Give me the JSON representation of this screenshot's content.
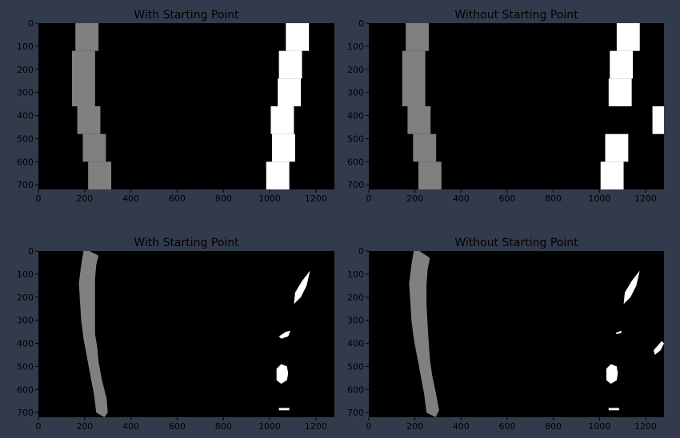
{
  "figure": {
    "background": "#323b4b",
    "panel_background": "#000000",
    "text_color": "#000000",
    "left_lane_color": "#808080",
    "right_lane_color": "#ffffff"
  },
  "chart_data": [
    {
      "type": "heatmap",
      "title": "With Starting Point",
      "xlim": [
        0,
        1280
      ],
      "ylim": [
        720,
        0
      ],
      "xticks": [
        0,
        200,
        400,
        600,
        800,
        1000,
        1200
      ],
      "yticks": [
        0,
        100,
        200,
        300,
        400,
        500,
        600,
        700
      ],
      "windows": [
        {
          "lane": "left",
          "rects": [
            [
              160,
              0,
              260,
              120
            ],
            [
              145,
              120,
              245,
              360
            ],
            [
              168,
              360,
              268,
              480
            ],
            [
              192,
              480,
              292,
              600
            ],
            [
              215,
              600,
              315,
              720
            ]
          ]
        },
        {
          "lane": "right",
          "rects": [
            [
              1070,
              0,
              1170,
              120
            ],
            [
              1040,
              120,
              1140,
              240
            ],
            [
              1035,
              240,
              1135,
              360
            ],
            [
              1005,
              360,
              1105,
              480
            ],
            [
              1010,
              480,
              1110,
              600
            ],
            [
              985,
              600,
              1085,
              720
            ]
          ]
        }
      ]
    },
    {
      "type": "heatmap",
      "title": "Without Starting Point",
      "xlim": [
        0,
        1280
      ],
      "ylim": [
        720,
        0
      ],
      "xticks": [
        0,
        200,
        400,
        600,
        800,
        1000,
        1200
      ],
      "yticks": [
        0,
        100,
        200,
        300,
        400,
        500,
        600,
        700
      ],
      "windows": [
        {
          "lane": "left",
          "rects": [
            [
              160,
              0,
              260,
              120
            ],
            [
              145,
              120,
              245,
              360
            ],
            [
              168,
              360,
              268,
              480
            ],
            [
              192,
              480,
              292,
              600
            ],
            [
              215,
              600,
              315,
              720
            ]
          ]
        },
        {
          "lane": "right",
          "rects": [
            [
              1075,
              0,
              1175,
              120
            ],
            [
              1045,
              120,
              1145,
              240
            ],
            [
              1040,
              240,
              1140,
              360
            ],
            [
              1230,
              360,
              1280,
              480
            ],
            [
              1025,
              480,
              1125,
              600
            ],
            [
              1005,
              600,
              1105,
              720
            ]
          ]
        }
      ]
    },
    {
      "type": "heatmap",
      "title": "With Starting Point",
      "xlim": [
        0,
        1280
      ],
      "ylim": [
        720,
        0
      ],
      "xticks": [
        0,
        200,
        400,
        600,
        800,
        1000,
        1200
      ],
      "yticks": [
        0,
        100,
        200,
        300,
        400,
        500,
        600,
        700
      ],
      "blobs": [
        {
          "lane": "left",
          "points": [
            [
              195,
              0
            ],
            [
              220,
              0
            ],
            [
              260,
              20
            ],
            [
              250,
              60
            ],
            [
              245,
              120
            ],
            [
              245,
              200
            ],
            [
              245,
              300
            ],
            [
              245,
              360
            ],
            [
              255,
              420
            ],
            [
              260,
              480
            ],
            [
              275,
              560
            ],
            [
              295,
              640
            ],
            [
              300,
              700
            ],
            [
              285,
              720
            ],
            [
              250,
              700
            ],
            [
              240,
              620
            ],
            [
              225,
              540
            ],
            [
              210,
              460
            ],
            [
              195,
              380
            ],
            [
              185,
              300
            ],
            [
              180,
              220
            ],
            [
              175,
              140
            ],
            [
              185,
              60
            ]
          ]
        },
        {
          "lane": "right",
          "points": [
            [
              1110,
              180
            ],
            [
              1140,
              130
            ],
            [
              1175,
              85
            ],
            [
              1160,
              150
            ],
            [
              1135,
              200
            ],
            [
              1105,
              230
            ]
          ]
        },
        {
          "lane": "right",
          "points": [
            [
              1040,
              370
            ],
            [
              1070,
              350
            ],
            [
              1090,
              345
            ],
            [
              1080,
              370
            ],
            [
              1050,
              380
            ]
          ]
        },
        {
          "lane": "right",
          "points": [
            [
              1030,
              510
            ],
            [
              1050,
              490
            ],
            [
              1075,
              500
            ],
            [
              1080,
              530
            ],
            [
              1075,
              560
            ],
            [
              1050,
              575
            ],
            [
              1030,
              560
            ]
          ]
        },
        {
          "lane": "right",
          "points": [
            [
              1040,
              680
            ],
            [
              1085,
              680
            ],
            [
              1085,
              690
            ],
            [
              1040,
              690
            ]
          ]
        }
      ]
    },
    {
      "type": "heatmap",
      "title": "Without Starting Point",
      "xlim": [
        0,
        1280
      ],
      "ylim": [
        720,
        0
      ],
      "xticks": [
        0,
        200,
        400,
        600,
        800,
        1000,
        1200
      ],
      "yticks": [
        0,
        100,
        200,
        300,
        400,
        500,
        600,
        700
      ],
      "blobs": [
        {
          "lane": "left",
          "points": [
            [
              195,
              0
            ],
            [
              220,
              0
            ],
            [
              265,
              30
            ],
            [
              255,
              80
            ],
            [
              250,
              150
            ],
            [
              250,
              230
            ],
            [
              255,
              320
            ],
            [
              260,
              400
            ],
            [
              265,
              470
            ],
            [
              275,
              540
            ],
            [
              290,
              610
            ],
            [
              305,
              690
            ],
            [
              290,
              720
            ],
            [
              250,
              700
            ],
            [
              240,
              620
            ],
            [
              225,
              540
            ],
            [
              210,
              460
            ],
            [
              195,
              380
            ],
            [
              185,
              300
            ],
            [
              180,
              220
            ],
            [
              175,
              140
            ],
            [
              185,
              60
            ]
          ]
        },
        {
          "lane": "right",
          "points": [
            [
              1110,
              180
            ],
            [
              1140,
              130
            ],
            [
              1175,
              85
            ],
            [
              1160,
              150
            ],
            [
              1135,
              200
            ],
            [
              1105,
              230
            ]
          ]
        },
        {
          "lane": "right",
          "points": [
            [
              1070,
              355
            ],
            [
              1095,
              345
            ],
            [
              1095,
              355
            ],
            [
              1075,
              360
            ]
          ]
        },
        {
          "lane": "right",
          "points": [
            [
              1030,
              510
            ],
            [
              1050,
              490
            ],
            [
              1075,
              500
            ],
            [
              1080,
              530
            ],
            [
              1075,
              560
            ],
            [
              1050,
              575
            ],
            [
              1030,
              560
            ]
          ]
        },
        {
          "lane": "right",
          "points": [
            [
              1040,
              680
            ],
            [
              1085,
              680
            ],
            [
              1085,
              690
            ],
            [
              1040,
              690
            ]
          ]
        },
        {
          "lane": "right",
          "points": [
            [
              1235,
              430
            ],
            [
              1270,
              390
            ],
            [
              1280,
              400
            ],
            [
              1265,
              430
            ],
            [
              1240,
              450
            ]
          ]
        }
      ]
    }
  ]
}
